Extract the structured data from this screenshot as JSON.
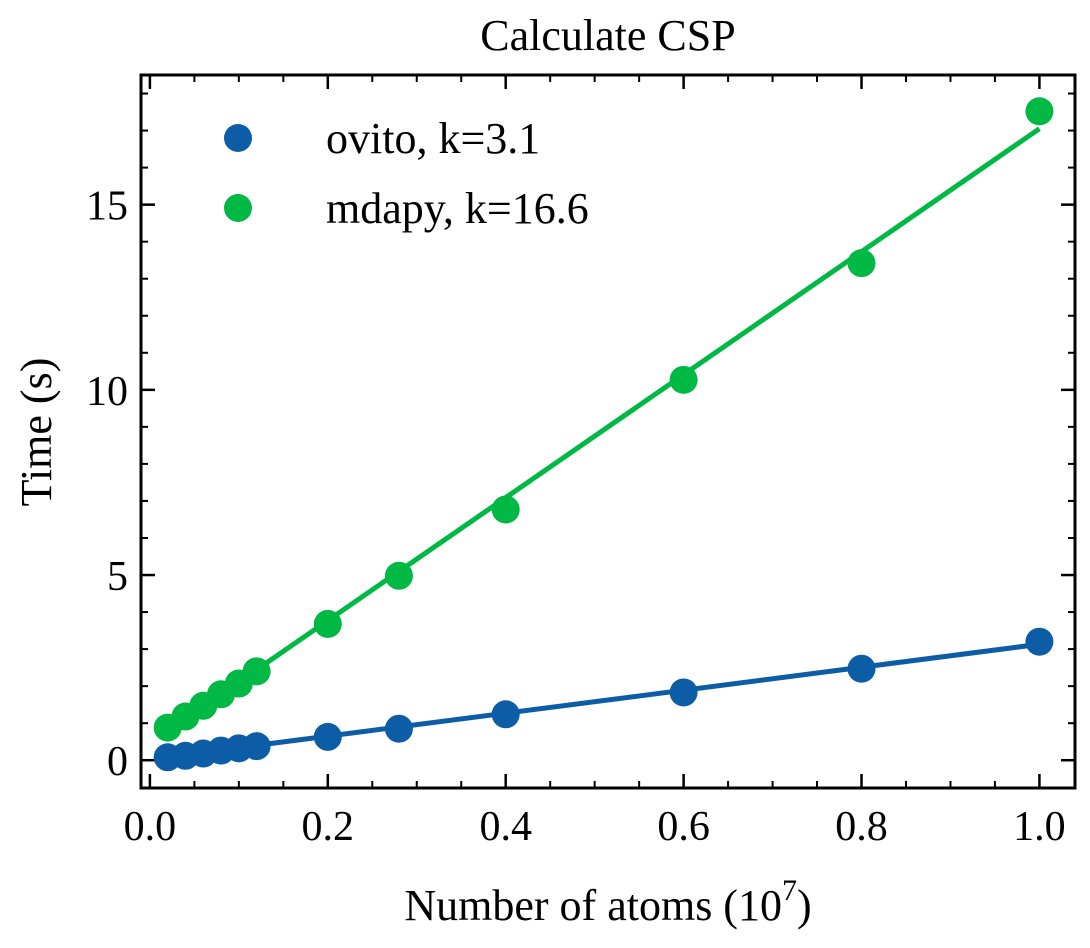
{
  "chart_data": {
    "type": "scatter",
    "title": "Calculate CSP",
    "xlabel": "Number of atoms (10",
    "xlabel_sup": "7",
    "xlabel_close": ")",
    "ylabel": "Time (s)",
    "xlim": [
      -0.01,
      1.04
    ],
    "ylim": [
      -0.75,
      18.5
    ],
    "xticks": [
      0.0,
      0.2,
      0.4,
      0.6,
      0.8,
      1.0
    ],
    "xtick_labels": [
      "0.0",
      "0.2",
      "0.4",
      "0.6",
      "0.8",
      "1.0"
    ],
    "yticks": [
      0,
      5,
      10,
      15
    ],
    "ytick_labels": [
      "0",
      "5",
      "10",
      "15"
    ],
    "grid": false,
    "legend_position": "top-left",
    "x": [
      0.02,
      0.04,
      0.06,
      0.08,
      0.1,
      0.12,
      0.2,
      0.28,
      0.4,
      0.6,
      0.8,
      1.0
    ],
    "series": [
      {
        "name": "ovito, k=3.1",
        "color": "#0c5da5",
        "values": [
          0.08,
          0.12,
          0.18,
          0.26,
          0.32,
          0.38,
          0.63,
          0.85,
          1.24,
          1.83,
          2.47,
          3.2
        ],
        "fit": {
          "slope": 3.1,
          "intercept": 0.03
        }
      },
      {
        "name": "mdapy, k=16.6",
        "color": "#00b945",
        "values": [
          0.88,
          1.18,
          1.47,
          1.78,
          2.07,
          2.4,
          3.68,
          4.98,
          6.77,
          10.27,
          13.42,
          17.52
        ],
        "fit": {
          "slope": 16.6,
          "intercept": 0.45
        }
      }
    ]
  }
}
